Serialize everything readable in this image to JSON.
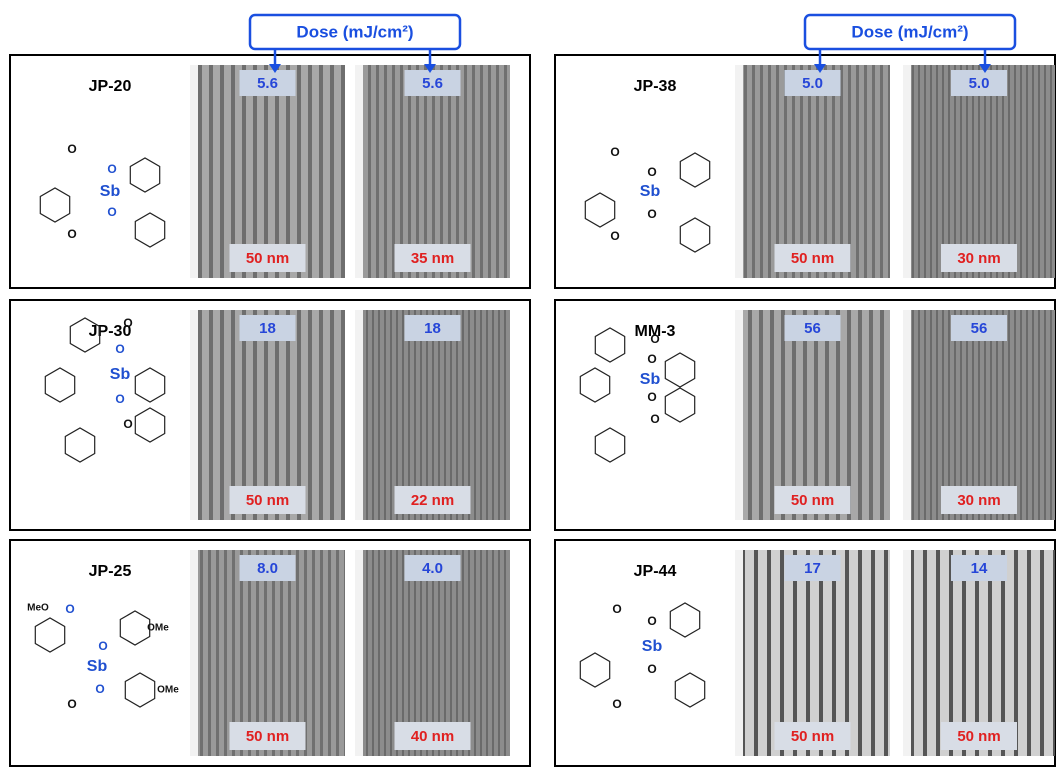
{
  "header": {
    "dose_labels": [
      "Dose (mJ/cm²)",
      "Dose (mJ/cm²)"
    ]
  },
  "panels": [
    {
      "name": "JP-20",
      "atoms": [
        "O",
        "O",
        "Sb",
        "O",
        "O"
      ],
      "images": [
        {
          "dose": "5.6",
          "size": "50 nm"
        },
        {
          "dose": "5.6",
          "size": "35 nm"
        }
      ]
    },
    {
      "name": "JP-38",
      "atoms": [
        "O",
        "O",
        "Sb",
        "O",
        "O"
      ],
      "images": [
        {
          "dose": "5.0",
          "size": "50 nm"
        },
        {
          "dose": "5.0",
          "size": "30 nm"
        }
      ]
    },
    {
      "name": "JP-30",
      "atoms": [
        "O",
        "O",
        "Sb",
        "O",
        "O"
      ],
      "images": [
        {
          "dose": "18",
          "size": "50 nm"
        },
        {
          "dose": "18",
          "size": "22 nm"
        }
      ]
    },
    {
      "name": "MM-3",
      "atoms": [
        "O",
        "O",
        "Sb",
        "O",
        "O"
      ],
      "images": [
        {
          "dose": "56",
          "size": "50 nm"
        },
        {
          "dose": "56",
          "size": "30 nm"
        }
      ]
    },
    {
      "name": "JP-25",
      "atoms": [
        "MeO",
        "O",
        "O",
        "Sb",
        "OMe",
        "OMe",
        "O",
        "O"
      ],
      "images": [
        {
          "dose": "8.0",
          "size": "50 nm"
        },
        {
          "dose": "4.0",
          "size": "40 nm"
        }
      ]
    },
    {
      "name": "JP-44",
      "atoms": [
        "O",
        "O",
        "Sb",
        "O",
        "O"
      ],
      "images": [
        {
          "dose": "17",
          "size": "50 nm"
        },
        {
          "dose": "14",
          "size": "50 nm"
        }
      ]
    }
  ]
}
